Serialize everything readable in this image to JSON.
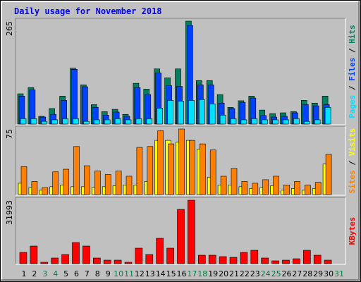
{
  "chart_data": [
    {
      "type": "bar",
      "title": "Daily usage for November 2018",
      "ylim": [
        0,
        265
      ],
      "yticks": [
        265
      ],
      "separator": " / ",
      "series": [
        {
          "name": "Hits",
          "color": "#008060",
          "values": [
            78,
            94,
            20,
            40,
            72,
            144,
            101,
            50,
            32,
            38,
            25,
            105,
            90,
            142,
            119,
            142,
            265,
            112,
            112,
            76,
            43,
            60,
            72,
            36,
            27,
            29,
            32,
            61,
            54,
            72,
            null
          ]
        },
        {
          "name": "Files",
          "color": "#0040ff",
          "values": [
            72,
            88,
            18,
            25,
            61,
            141,
            96,
            43,
            23,
            31,
            20,
            94,
            76,
            132,
            99,
            97,
            254,
            101,
            101,
            54,
            40,
            56,
            67,
            22,
            18,
            20,
            29,
            50,
            47,
            50,
            null
          ]
        },
        {
          "name": "Pages",
          "color": "#00e0ff",
          "values": [
            14,
            14,
            7,
            11,
            14,
            14,
            7,
            11,
            11,
            14,
            11,
            14,
            14,
            41,
            61,
            59,
            61,
            63,
            52,
            23,
            14,
            11,
            14,
            11,
            11,
            11,
            14,
            7,
            11,
            43,
            null
          ]
        }
      ]
    },
    {
      "type": "bar",
      "ylim": [
        0,
        75
      ],
      "yticks": [
        75
      ],
      "separator": " / ",
      "series": [
        {
          "name": "Visits",
          "color": "#ffff00",
          "values": [
            13,
            8,
            5,
            9,
            11,
            9,
            9,
            8,
            9,
            10,
            11,
            11,
            15,
            62,
            62,
            60,
            62,
            52,
            20,
            11,
            11,
            9,
            7,
            8,
            10,
            5,
            7,
            5,
            7,
            35,
            null
          ]
        },
        {
          "name": "Sites",
          "color": "#ff8000",
          "values": [
            32,
            15,
            8,
            26,
            29,
            55,
            33,
            27,
            23,
            27,
            21,
            54,
            55,
            73,
            58,
            75,
            62,
            58,
            51,
            21,
            30,
            15,
            13,
            17,
            21,
            11,
            15,
            11,
            14,
            46,
            null
          ]
        }
      ]
    },
    {
      "type": "bar",
      "ylim": [
        0,
        31993
      ],
      "yticks": [
        31993
      ],
      "categories": [
        "1",
        "2",
        "3",
        "4",
        "5",
        "6",
        "7",
        "8",
        "9",
        "10",
        "11",
        "12",
        "13",
        "14",
        "15",
        "16",
        "17",
        "18",
        "19",
        "20",
        "21",
        "22",
        "23",
        "24",
        "25",
        "26",
        "27",
        "28",
        "29",
        "30",
        "31"
      ],
      "category_colors": [
        "#000",
        "#000",
        "#008040",
        "#008040",
        "#000",
        "#000",
        "#000",
        "#000",
        "#000",
        "#008040",
        "#008040",
        "#000",
        "#000",
        "#000",
        "#000",
        "#000",
        "#008040",
        "#008040",
        "#000",
        "#000",
        "#000",
        "#000",
        "#000",
        "#008040",
        "#008040",
        "#000",
        "#000",
        "#000",
        "#000",
        "#000",
        "#008040"
      ],
      "series": [
        {
          "name": "KBytes",
          "color": "#ff0000",
          "values": [
            5688,
            8888,
            711,
            2844,
            4622,
            10665,
            8888,
            2844,
            1778,
            1778,
            711,
            7821,
            4622,
            12798,
            7821,
            27374,
            31993,
            4266,
            4266,
            3555,
            3200,
            5688,
            6755,
            2844,
            1422,
            1778,
            2489,
            6755,
            4266,
            1778,
            null
          ]
        }
      ]
    }
  ]
}
